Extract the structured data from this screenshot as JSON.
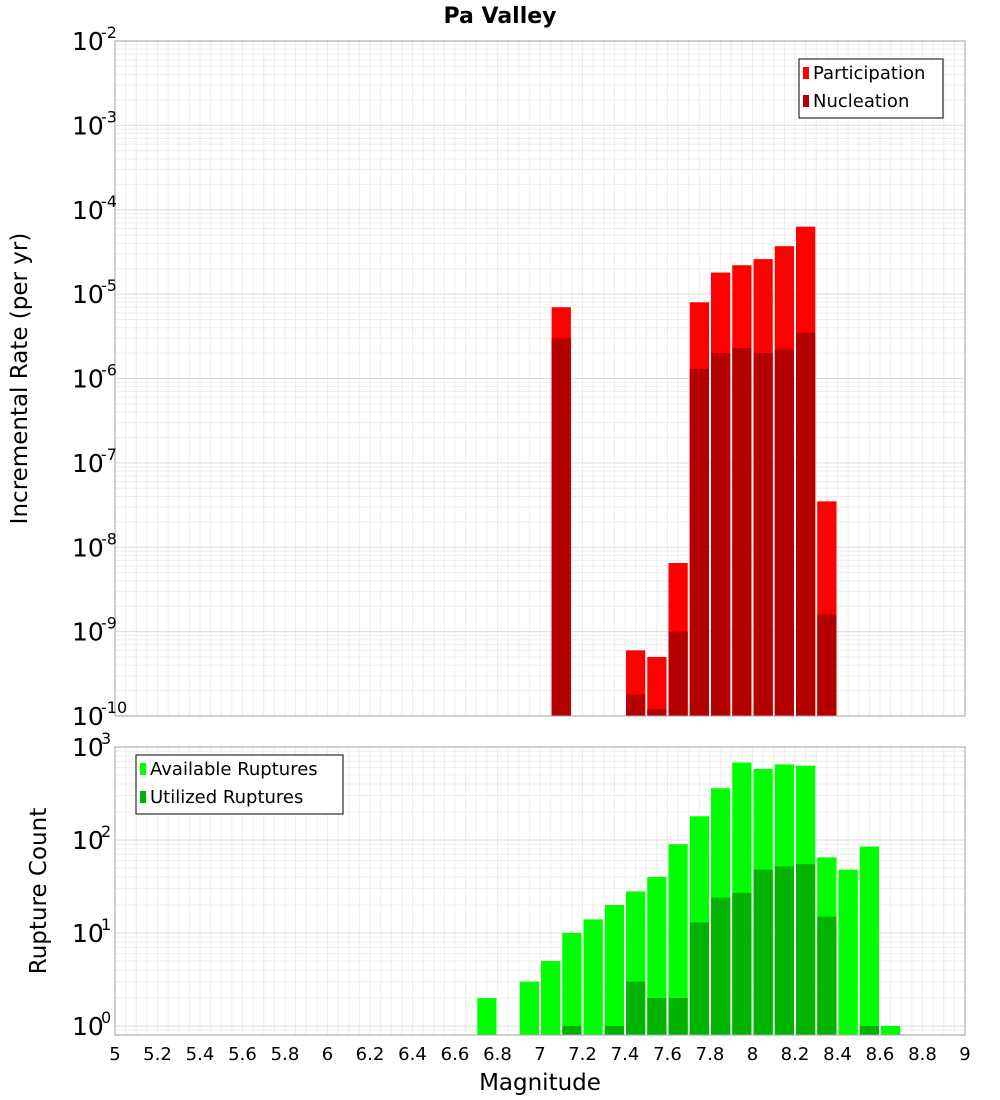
{
  "chart_data": {
    "type": "bar",
    "title": "Pa Valley",
    "xlabel": "Magnitude",
    "xlim": [
      5,
      9
    ],
    "xticks": [
      "5",
      "5.2",
      "5.4",
      "5.6",
      "5.8",
      "6",
      "6.2",
      "6.4",
      "6.6",
      "6.8",
      "7",
      "7.2",
      "7.4",
      "7.6",
      "7.8",
      "8",
      "8.2",
      "8.4",
      "8.6",
      "8.8",
      "9"
    ],
    "bin_width": 0.1,
    "panels": [
      {
        "ylabel": "Incremental Rate (per yr)",
        "yscale": "log",
        "ylim": [
          1e-10,
          0.01
        ],
        "ytick_exponents": [
          "-10",
          "-9",
          "-8",
          "-7",
          "-6",
          "-5",
          "-4",
          "-3",
          "-2"
        ],
        "legend_position": "top-right",
        "series": [
          {
            "name": "Participation",
            "color": "#ff0000",
            "x": [
              7.1,
              7.45,
              7.55,
              7.65,
              7.75,
              7.85,
              7.95,
              8.05,
              8.15,
              8.25,
              8.35
            ],
            "values": [
              7e-06,
              6e-10,
              5e-10,
              6.5e-09,
              8e-06,
              1.8e-05,
              2.2e-05,
              2.6e-05,
              3.7e-05,
              6.3e-05,
              3.5e-08
            ]
          },
          {
            "name": "Nucleation",
            "color": "#b30000",
            "x": [
              7.1,
              7.45,
              7.55,
              7.65,
              7.75,
              7.85,
              7.95,
              8.05,
              8.15,
              8.25,
              8.35
            ],
            "values": [
              3e-06,
              1.8e-10,
              1.2e-10,
              1e-09,
              1.3e-06,
              2e-06,
              2.3e-06,
              2e-06,
              2.2e-06,
              3.5e-06,
              1.6e-09
            ]
          }
        ]
      },
      {
        "ylabel": "Rupture Count",
        "yscale": "log",
        "ylim": [
          0.8,
          1000
        ],
        "ytick_exponents": [
          "0",
          "1",
          "2",
          "3"
        ],
        "legend_position": "top-left",
        "series": [
          {
            "name": "Available Ruptures",
            "color": "#00ff00",
            "x": [
              6.75,
              6.95,
              7.05,
              7.15,
              7.25,
              7.35,
              7.45,
              7.55,
              7.65,
              7.75,
              7.85,
              7.95,
              8.05,
              8.15,
              8.25,
              8.35,
              8.45,
              8.55,
              8.65
            ],
            "values": [
              2,
              3,
              5,
              10,
              14,
              20,
              28,
              40,
              90,
              180,
              360,
              680,
              580,
              650,
              630,
              65,
              48,
              85,
              1
            ]
          },
          {
            "name": "Utilized Ruptures",
            "color": "#00b300",
            "x": [
              7.15,
              7.35,
              7.45,
              7.55,
              7.65,
              7.75,
              7.85,
              7.95,
              8.05,
              8.15,
              8.25,
              8.35,
              8.55
            ],
            "values": [
              1,
              1,
              3,
              2,
              2,
              13,
              24,
              27,
              48,
              52,
              55,
              15,
              1
            ]
          }
        ]
      }
    ]
  }
}
